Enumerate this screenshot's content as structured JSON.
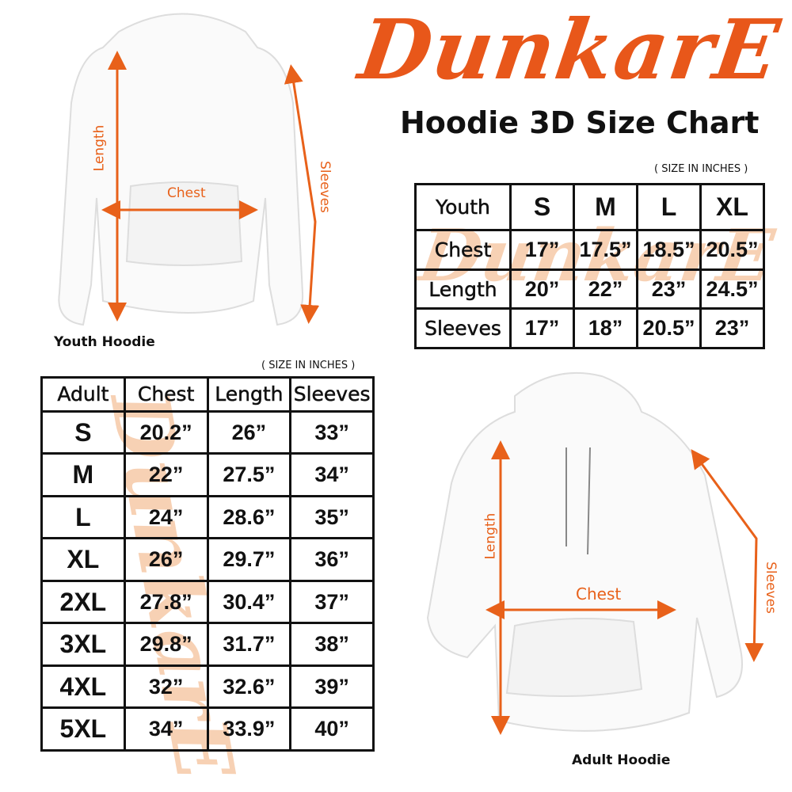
{
  "brand": {
    "logo_text": "DunkarE",
    "color": "#E8571A"
  },
  "title": "Hoodie 3D Size Chart",
  "youth": {
    "unit_note": "( SIZE IN INCHES )",
    "caption": "Youth Hoodie",
    "header": [
      "Youth",
      "S",
      "M",
      "L",
      "XL"
    ],
    "rows": [
      [
        "Chest",
        "17”",
        "17.5”",
        "18.5”",
        "20.5”"
      ],
      [
        "Length",
        "20”",
        "22”",
        "23”",
        "24.5”"
      ],
      [
        "Sleeves",
        "17”",
        "18”",
        "20.5”",
        "23”"
      ]
    ],
    "labels": {
      "length": "Length",
      "chest": "Chest",
      "sleeves": "Sleeves"
    }
  },
  "adult": {
    "unit_note": "( SIZE IN INCHES )",
    "caption": "Adult Hoodie",
    "header": [
      "Adult",
      "Chest",
      "Length",
      "Sleeves"
    ],
    "rows": [
      [
        "S",
        "20.2”",
        "26”",
        "33”"
      ],
      [
        "M",
        "22”",
        "27.5”",
        "34”"
      ],
      [
        "L",
        "24”",
        "28.6”",
        "35”"
      ],
      [
        "XL",
        "26”",
        "29.7”",
        "36”"
      ],
      [
        "2XL",
        "27.8”",
        "30.4”",
        "37”"
      ],
      [
        "3XL",
        "29.8”",
        "31.7”",
        "38”"
      ],
      [
        "4XL",
        "32”",
        "32.6”",
        "39”"
      ],
      [
        "5XL",
        "34”",
        "33.9”",
        "40”"
      ]
    ],
    "labels": {
      "length": "Length",
      "chest": "Chest",
      "sleeves": "Sleeves"
    }
  },
  "colors": {
    "arrow": "#E8611A",
    "watermark": "#F6C9A8"
  }
}
